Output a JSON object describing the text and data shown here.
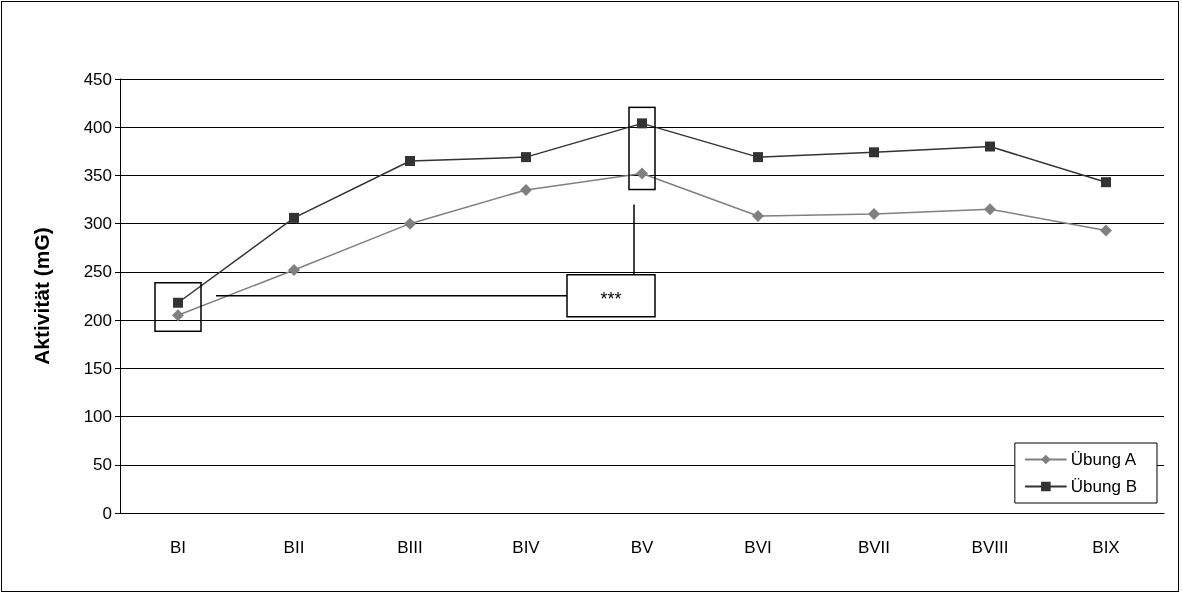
{
  "chart_data": {
    "type": "line",
    "ylabel": "Aktivität (mG)",
    "categories": [
      "BI",
      "BII",
      "BIII",
      "BIV",
      "BV",
      "BVI",
      "BVII",
      "BVIII",
      "BIX"
    ],
    "series": [
      {
        "name": "Übung A",
        "color": "#808080",
        "marker": "diamond",
        "values": [
          205,
          252,
          300,
          335,
          352,
          308,
          310,
          315,
          293
        ]
      },
      {
        "name": "Übung B",
        "color": "#333333",
        "marker": "square",
        "values": [
          218,
          306,
          365,
          369,
          404,
          369,
          374,
          380,
          343
        ]
      }
    ],
    "ylim": [
      0,
      450
    ],
    "yticks": [
      0,
      50,
      100,
      150,
      200,
      250,
      300,
      350,
      400,
      450
    ],
    "grid": "y",
    "legend": "bottom right",
    "line_style": "solid",
    "annotations": [
      "***"
    ]
  }
}
